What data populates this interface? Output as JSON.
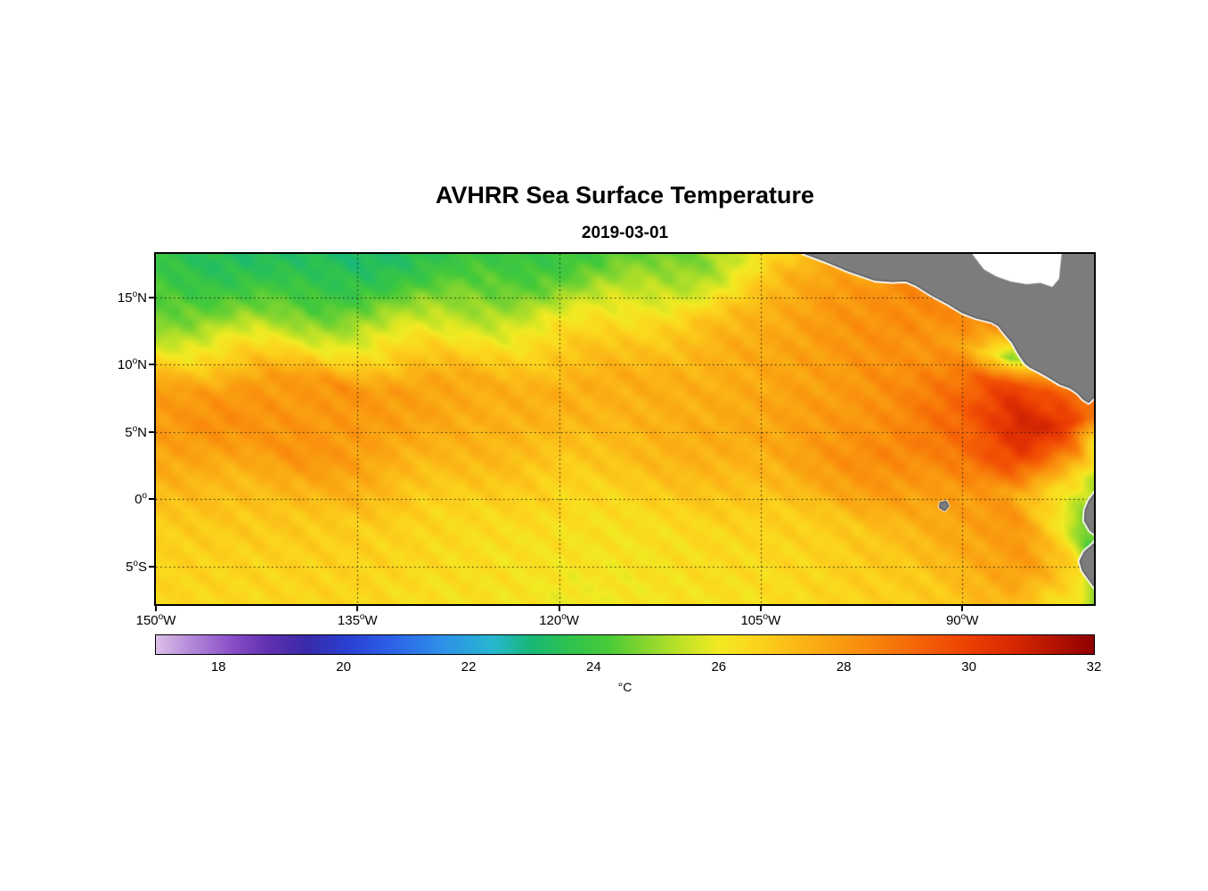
{
  "chart_data": {
    "type": "heatmap",
    "title": "AVHRR Sea Surface Temperature",
    "subtitle": "2019-03-01",
    "xlabel": "",
    "ylabel": "",
    "lon_range": [
      -150,
      -80.2
    ],
    "lat_range": [
      -7.8,
      18.25
    ],
    "grid_on": true,
    "x_ticks": [
      {
        "value": "150",
        "hemisphere": "W",
        "lon": -150
      },
      {
        "value": "135",
        "hemisphere": "W",
        "lon": -135
      },
      {
        "value": "120",
        "hemisphere": "W",
        "lon": -120
      },
      {
        "value": "105",
        "hemisphere": "W",
        "lon": -105
      },
      {
        "value": "90",
        "hemisphere": "W",
        "lon": -90
      }
    ],
    "y_ticks": [
      {
        "value": "15",
        "hemisphere": "N",
        "lat": 15
      },
      {
        "value": "10",
        "hemisphere": "N",
        "lat": 10
      },
      {
        "value": "5",
        "hemisphere": "N",
        "lat": 5
      },
      {
        "value": "0",
        "hemisphere": "",
        "lat": 0
      },
      {
        "value": "5",
        "hemisphere": "S",
        "lat": -5
      }
    ],
    "gridlines": {
      "lons": [
        -135,
        -120,
        -105,
        -90
      ],
      "lats": [
        15,
        10,
        5,
        0,
        -5
      ]
    },
    "colorbar": {
      "label": "°C",
      "min": 17,
      "max": 32,
      "ticks": [
        18,
        20,
        22,
        24,
        26,
        28,
        30,
        32
      ],
      "orientation": "horizontal"
    },
    "colormap_stops": [
      [
        17.0,
        "#dcc0e8"
      ],
      [
        17.6,
        "#b286d8"
      ],
      [
        18.2,
        "#8a4fc8"
      ],
      [
        18.8,
        "#6030b0"
      ],
      [
        19.4,
        "#3a2aa8"
      ],
      [
        20.0,
        "#2a3ecf"
      ],
      [
        20.8,
        "#2d63e8"
      ],
      [
        21.6,
        "#2e92e8"
      ],
      [
        22.4,
        "#27b7d0"
      ],
      [
        23.0,
        "#17b877"
      ],
      [
        23.6,
        "#2fc24f"
      ],
      [
        24.2,
        "#46ca39"
      ],
      [
        24.8,
        "#84d52f"
      ],
      [
        25.4,
        "#bfe226"
      ],
      [
        26.0,
        "#f2ea22"
      ],
      [
        26.6,
        "#fcd41d"
      ],
      [
        27.2,
        "#fbbb17"
      ],
      [
        27.8,
        "#faa211"
      ],
      [
        28.4,
        "#f9880c"
      ],
      [
        29.0,
        "#f66d07"
      ],
      [
        29.6,
        "#f25104"
      ],
      [
        30.2,
        "#e83803"
      ],
      [
        30.8,
        "#d32502"
      ],
      [
        31.4,
        "#b21301"
      ],
      [
        32.0,
        "#8e0000"
      ]
    ],
    "sst_grid": {
      "lons": [
        -150,
        -145,
        -140,
        -135,
        -130,
        -125,
        -120,
        -115,
        -110,
        -105,
        -100,
        -95,
        -90,
        -86,
        -82,
        -80
      ],
      "lats": [
        18.2,
        16,
        13.5,
        11,
        8.5,
        6,
        3.5,
        1,
        -1.5,
        -4.5,
        -8
      ],
      "values_c": [
        [
          23.8,
          23.4,
          23.2,
          23.2,
          23.5,
          23.8,
          24.0,
          24.2,
          24.8,
          26.0,
          27.2,
          27.8,
          28.0,
          28.0,
          27.8,
          27.6
        ],
        [
          24.2,
          23.8,
          23.6,
          23.8,
          24.0,
          24.4,
          24.6,
          25.0,
          25.6,
          26.8,
          28.0,
          28.3,
          28.3,
          28.2,
          28.0,
          27.8
        ],
        [
          24.8,
          24.6,
          24.8,
          25.0,
          25.2,
          25.5,
          25.8,
          26.2,
          26.8,
          27.4,
          28.0,
          28.3,
          28.4,
          28.2,
          28.0,
          27.8
        ],
        [
          26.2,
          26.4,
          26.3,
          26.4,
          26.5,
          26.6,
          26.8,
          27.0,
          27.3,
          27.6,
          27.9,
          28.2,
          27.8,
          24.8,
          27.4,
          27.5
        ],
        [
          27.8,
          28.0,
          27.9,
          28.2,
          27.7,
          27.5,
          27.5,
          27.5,
          27.5,
          27.6,
          27.9,
          28.3,
          28.8,
          30.0,
          29.4,
          29.0
        ],
        [
          28.0,
          28.3,
          28.0,
          28.0,
          27.8,
          27.5,
          27.3,
          27.4,
          27.5,
          27.7,
          28.0,
          28.4,
          29.2,
          30.9,
          30.4,
          29.0
        ],
        [
          27.6,
          27.9,
          28.2,
          27.8,
          27.5,
          27.2,
          27.0,
          27.2,
          27.4,
          27.6,
          28.0,
          28.5,
          29.0,
          29.8,
          28.6,
          26.0
        ],
        [
          27.2,
          27.2,
          27.5,
          27.4,
          27.0,
          26.8,
          26.6,
          26.8,
          27.0,
          27.2,
          27.6,
          28.0,
          28.2,
          27.8,
          26.2,
          24.8
        ],
        [
          26.8,
          26.8,
          27.0,
          26.8,
          26.6,
          26.5,
          26.3,
          26.4,
          26.5,
          26.7,
          26.9,
          27.2,
          27.8,
          28.2,
          26.2,
          24.5
        ],
        [
          26.6,
          26.6,
          26.7,
          26.6,
          26.5,
          26.3,
          26.2,
          26.2,
          26.3,
          26.5,
          26.6,
          26.9,
          27.6,
          27.9,
          26.6,
          24.2
        ],
        [
          26.5,
          26.5,
          26.5,
          26.5,
          26.3,
          26.2,
          26.0,
          26.1,
          26.2,
          26.3,
          26.5,
          26.6,
          27.0,
          27.1,
          26.0,
          23.8
        ]
      ]
    },
    "land": {
      "fill_color": "#7c7c7c",
      "outline_color": "#4f4f4f",
      "coast_halo_color": "#ffffff",
      "polygons": {
        "central_america": [
          [
            -101.8,
            18.3
          ],
          [
            -100.2,
            17.7
          ],
          [
            -98.5,
            17.0
          ],
          [
            -96.5,
            16.3
          ],
          [
            -95.2,
            16.2
          ],
          [
            -94.2,
            16.25
          ],
          [
            -93.4,
            15.9
          ],
          [
            -92.3,
            15.2
          ],
          [
            -91.0,
            14.5
          ],
          [
            -90.0,
            13.9
          ],
          [
            -89.0,
            13.5
          ],
          [
            -87.8,
            13.2
          ],
          [
            -87.3,
            12.9
          ],
          [
            -86.9,
            12.4
          ],
          [
            -86.3,
            11.7
          ],
          [
            -85.9,
            11.0
          ],
          [
            -85.65,
            10.6
          ],
          [
            -85.3,
            10.1
          ],
          [
            -84.9,
            9.8
          ],
          [
            -84.3,
            9.5
          ],
          [
            -83.6,
            9.1
          ],
          [
            -82.8,
            8.6
          ],
          [
            -82.0,
            8.3
          ],
          [
            -81.4,
            7.9
          ],
          [
            -81.0,
            7.45
          ],
          [
            -80.6,
            7.2
          ],
          [
            -80.2,
            7.6
          ],
          [
            -79.9,
            8.1
          ],
          [
            -79.4,
            8.6
          ],
          [
            -78.9,
            8.8
          ],
          [
            -78.5,
            18.3
          ]
        ],
        "south_america": [
          [
            -78.0,
            2.0
          ],
          [
            -78.9,
            1.6
          ],
          [
            -79.6,
            1.05
          ],
          [
            -80.1,
            0.5
          ],
          [
            -80.55,
            -0.1
          ],
          [
            -80.85,
            -0.8
          ],
          [
            -80.9,
            -1.6
          ],
          [
            -80.5,
            -2.3
          ],
          [
            -79.9,
            -2.75
          ],
          [
            -80.2,
            -3.3
          ],
          [
            -80.9,
            -3.9
          ],
          [
            -81.25,
            -4.6
          ],
          [
            -81.05,
            -5.3
          ],
          [
            -80.4,
            -6.2
          ],
          [
            -79.8,
            -7.0
          ],
          [
            -79.4,
            -7.9
          ],
          [
            -79.2,
            -8.3
          ],
          [
            -77.5,
            -8.3
          ],
          [
            -77.5,
            2.0
          ]
        ],
        "galapagos": [
          [
            -91.65,
            -0.25
          ],
          [
            -91.2,
            -0.15
          ],
          [
            -91.0,
            -0.5
          ],
          [
            -91.3,
            -0.85
          ],
          [
            -91.7,
            -0.6
          ]
        ]
      },
      "no_data_polygons": [
        [
          [
            -89.3,
            18.3
          ],
          [
            -88.4,
            17.1
          ],
          [
            -87.5,
            16.6
          ],
          [
            -86.4,
            16.2
          ],
          [
            -85.2,
            16.0
          ],
          [
            -84.2,
            16.1
          ],
          [
            -83.3,
            15.8
          ],
          [
            -82.8,
            16.4
          ],
          [
            -82.6,
            18.3
          ]
        ]
      ]
    },
    "figure_background": "#ffffff",
    "grid_line_color": "#1a1a1a"
  }
}
